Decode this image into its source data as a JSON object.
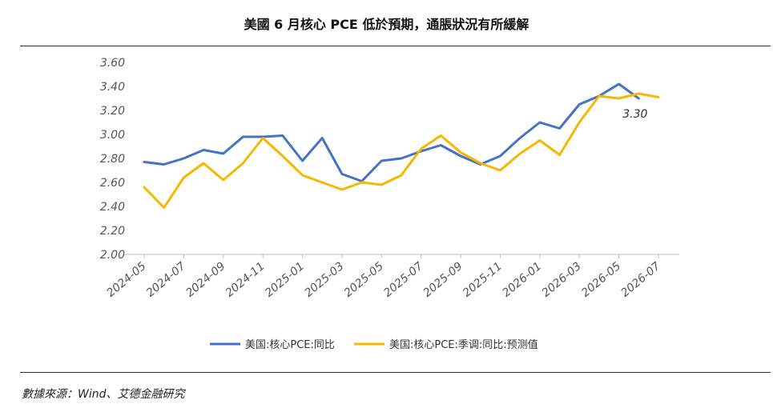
{
  "title": "美國 6 月核心 PCE 低於預期，通脹狀況有所緩解",
  "source": "數據來源：Wind、艾德金融研究",
  "chart_data": {
    "type": "line",
    "ylim": [
      2.0,
      3.6
    ],
    "yticks": [
      "2.00",
      "2.20",
      "2.40",
      "2.60",
      "2.80",
      "3.00",
      "3.20",
      "3.40",
      "3.60"
    ],
    "x": [
      "2024-05",
      "2024-06",
      "2024-07",
      "2024-08",
      "2024-09",
      "2024-10",
      "2024-11",
      "2024-12",
      "2025-01",
      "2025-02",
      "2025-03",
      "2025-04",
      "2025-05",
      "2025-06",
      "2025-07",
      "2025-08",
      "2025-09",
      "2025-10",
      "2025-11",
      "2025-12",
      "2026-01",
      "2026-02",
      "2026-03",
      "2026-04",
      "2026-05",
      "2026-06",
      "2026-07"
    ],
    "xtick_labels": [
      "2024-05",
      "2024-07",
      "2024-09",
      "2024-11",
      "2025-01",
      "2025-03",
      "2025-05",
      "2025-07",
      "2025-09",
      "2025-11",
      "2026-01",
      "2026-03",
      "2026-05",
      "2026-07"
    ],
    "series": [
      {
        "name": "美国:核心PCE:同比",
        "color": "#4472C4",
        "values": [
          2.77,
          2.75,
          2.8,
          2.87,
          2.84,
          2.98,
          2.98,
          2.99,
          2.78,
          2.97,
          2.67,
          2.61,
          2.78,
          2.8,
          2.86,
          2.91,
          2.82,
          2.75,
          2.82,
          2.97,
          3.1,
          3.05,
          3.25,
          3.32,
          3.42,
          3.3,
          null
        ]
      },
      {
        "name": "美国:核心PCE:季调:同比:预测值",
        "color": "#F5B800",
        "values": [
          2.56,
          2.39,
          2.64,
          2.76,
          2.62,
          2.76,
          2.97,
          2.82,
          2.66,
          2.6,
          2.54,
          2.6,
          2.58,
          2.66,
          2.88,
          2.99,
          2.85,
          2.76,
          2.7,
          2.84,
          2.95,
          2.83,
          3.1,
          3.32,
          3.3,
          3.34,
          3.31
        ]
      }
    ],
    "annotation": "3.30",
    "legend_position": "bottom",
    "grid": false
  }
}
